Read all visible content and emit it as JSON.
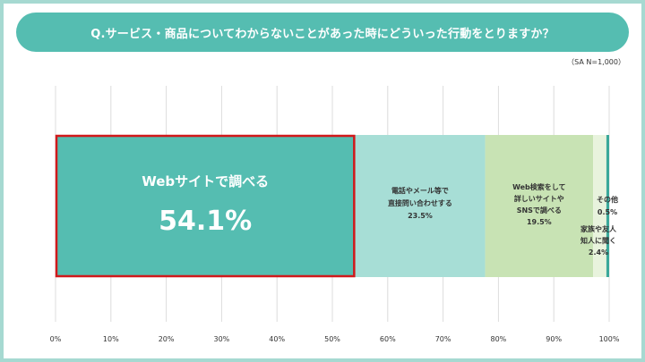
{
  "title": "Q.サービス・商品についてわからないことがあった時にどういった行動をとりますか？",
  "sample_note": "（SA N=1,000）",
  "colors": {
    "title_bg": "#55bdb1",
    "frame": "#a6d9d1",
    "highlight_border": "#d0191b"
  },
  "chart_data": {
    "type": "bar",
    "orientation": "horizontal-stacked-100",
    "xlim": [
      0,
      100
    ],
    "x_ticks": [
      "0%",
      "10%",
      "20%",
      "30%",
      "40%",
      "50%",
      "60%",
      "70%",
      "80%",
      "90%",
      "100%"
    ],
    "grid": true,
    "series": [
      {
        "label_lines": [
          "Webサイトで調べる"
        ],
        "value": 54.1,
        "value_text": "54.1%",
        "color": "#55bdb1",
        "text_color": "#ffffff",
        "highlight": true
      },
      {
        "label_lines": [
          "電話やメール等で",
          "直接問い合わせする"
        ],
        "value": 23.5,
        "value_text": "23.5%",
        "color": "#a7ded6",
        "text_color": "#333333"
      },
      {
        "label_lines": [
          "Web検索をして",
          "詳しいサイトや",
          "SNSで調べる"
        ],
        "value": 19.5,
        "value_text": "19.5%",
        "color": "#c8e3b4",
        "text_color": "#333333"
      },
      {
        "label_lines": [
          "家族や友人",
          "知人に聞く"
        ],
        "value": 2.4,
        "value_text": "2.4%",
        "color": "#e8f3dd",
        "text_color": "#333333"
      },
      {
        "label_lines": [
          "その他"
        ],
        "value": 0.5,
        "value_text": "0.5%",
        "color": "#3aa89a",
        "text_color": "#333333"
      }
    ]
  }
}
